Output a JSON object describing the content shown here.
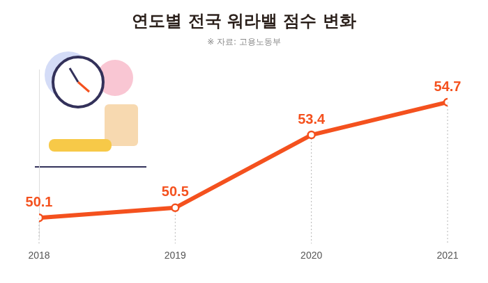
{
  "chart_data": {
    "type": "line",
    "title": "연도별 전국 워라밸 점수 변화",
    "subtitle": "※ 자료: 고용노동부",
    "categories": [
      "2018",
      "2019",
      "2020",
      "2021"
    ],
    "values": [
      50.1,
      50.5,
      53.4,
      54.7
    ],
    "color": "#f4511e",
    "ylim": [
      49.3,
      56
    ],
    "grid": false,
    "data_labels": true,
    "tick_labels": "x",
    "marker": "circle"
  }
}
